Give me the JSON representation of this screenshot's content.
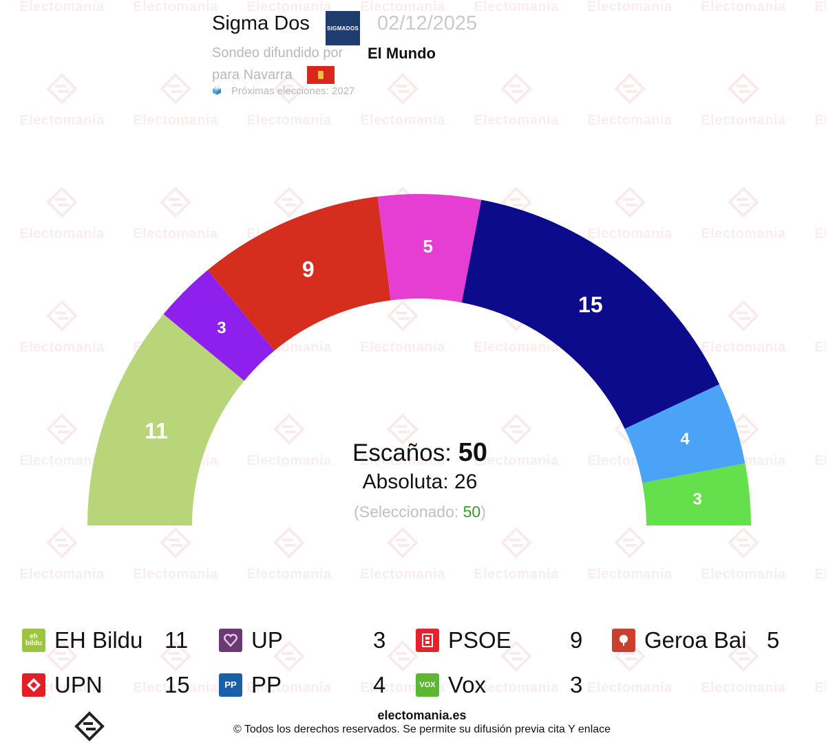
{
  "header": {
    "pollster": "Sigma Dos",
    "pollster_logo_text": "SIGMADOS",
    "date": "02/12/2025",
    "published_by_label": "Sondeo difundido por",
    "media": "El Mundo",
    "region_label": "para Navarra",
    "next_elections": "Próximas elecciones: 2027"
  },
  "watermark": {
    "text": "Electomania"
  },
  "chart_data": {
    "type": "hemicycle",
    "total_seats": 50,
    "majority": 26,
    "selected": 50,
    "parties": [
      {
        "name": "EH Bildu",
        "seats": 11,
        "color": "#b8d57a",
        "icon": "eh-bildu-logo-icon",
        "icon_text": "eh bildu",
        "icon_color": "#9bc43f"
      },
      {
        "name": "UP",
        "seats": 3,
        "color": "#8e20ee",
        "icon": "up-logo-icon",
        "icon_text": "",
        "icon_color": "#6b3a74"
      },
      {
        "name": "PSOE",
        "seats": 9,
        "color": "#d52e1f",
        "icon": "psoe-logo-icon",
        "icon_text": "",
        "icon_color": "#e4242c"
      },
      {
        "name": "Geroa Bai",
        "seats": 5,
        "color": "#e63ed2",
        "icon": "geroa-bai-logo-icon",
        "icon_text": "",
        "icon_color": "#c8402e"
      },
      {
        "name": "UPN",
        "seats": 15,
        "color": "#0b0b8c",
        "icon": "upn-logo-icon",
        "icon_text": "",
        "icon_color": "#e21e26"
      },
      {
        "name": "PP",
        "seats": 4,
        "color": "#4aa3f7",
        "icon": "pp-logo-icon",
        "icon_text": "PP",
        "icon_color": "#1b5fa8"
      },
      {
        "name": "Vox",
        "seats": 3,
        "color": "#66df4d",
        "icon": "vox-logo-icon",
        "icon_text": "VOX",
        "icon_color": "#5cb833"
      }
    ]
  },
  "center": {
    "seats_label": "Escaños:",
    "seats_value": "50",
    "majority_label": "Absoluta: 26",
    "selected_prefix": "(Seleccionado: ",
    "selected_value": "50",
    "selected_suffix": ")"
  },
  "legend": [
    {
      "name": "EH Bildu",
      "seats": "11"
    },
    {
      "name": "UP",
      "seats": "3"
    },
    {
      "name": "PSOE",
      "seats": "9"
    },
    {
      "name": "Geroa Bai",
      "seats": "5"
    },
    {
      "name": "UPN",
      "seats": "15"
    },
    {
      "name": "PP",
      "seats": "4"
    },
    {
      "name": "Vox",
      "seats": "3"
    }
  ],
  "footer": {
    "site": "electomania.es",
    "copyright": "© Todos los derechos reservados. Se permite su difusión previa cita Y enlace"
  }
}
